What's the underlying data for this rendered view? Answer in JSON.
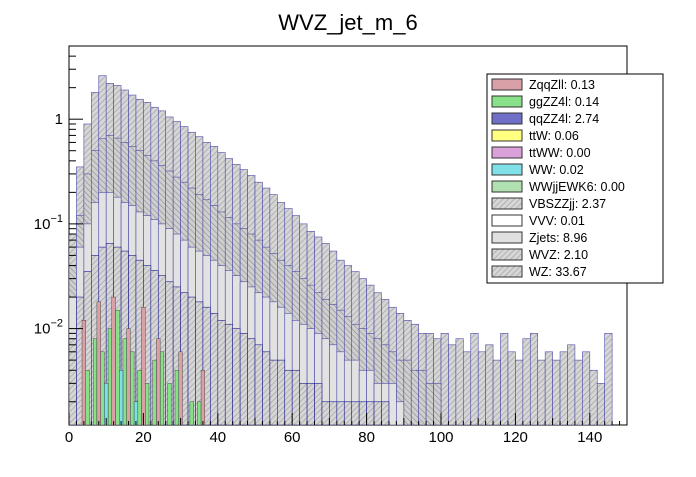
{
  "chart_data": {
    "type": "bar",
    "style": "stacked-step-histogram",
    "title": "WVZ_jet_m_6",
    "xlabel": "",
    "ylabel": "",
    "xlim": [
      0,
      150
    ],
    "ylim": [
      0.0012,
      5.0
    ],
    "yscale": "log",
    "x_ticks": [
      {
        "value": 0,
        "label": "0"
      },
      {
        "value": 20,
        "label": "20"
      },
      {
        "value": 40,
        "label": "40"
      },
      {
        "value": 60,
        "label": "60"
      },
      {
        "value": 80,
        "label": "80"
      },
      {
        "value": 100,
        "label": "100"
      },
      {
        "value": 120,
        "label": "120"
      },
      {
        "value": 140,
        "label": "140"
      }
    ],
    "y_ticks": [
      {
        "value": 0.01,
        "base": "10",
        "exp": "−2"
      },
      {
        "value": 0.1,
        "base": "10",
        "exp": "−1"
      },
      {
        "value": 1,
        "base": "1",
        "exp": ""
      }
    ],
    "legend": {
      "position": "top-right",
      "entries": [
        {
          "label": "ZqqZll: 0.13",
          "color": "#d9a0a8",
          "hatched": false
        },
        {
          "label": "ggZZ4l: 0.14",
          "color": "#88e088",
          "hatched": false
        },
        {
          "label": "qqZZ4l: 2.74",
          "color": "#6f6fc8",
          "hatched": false
        },
        {
          "label": "ttW: 0.06",
          "color": "#ffff80",
          "hatched": false
        },
        {
          "label": "ttWW: 0.00",
          "color": "#d9a0d9",
          "hatched": false
        },
        {
          "label": "WW: 0.02",
          "color": "#80e0e8",
          "hatched": false
        },
        {
          "label": "WWjjEWK6: 0.00",
          "color": "#b0e0b0",
          "hatched": false
        },
        {
          "label": "VBSZZjj: 2.37",
          "color": "#b8b8b8",
          "hatched": true
        },
        {
          "label": "VVV: 0.01",
          "color": "#ffffff",
          "hatched": false
        },
        {
          "label": "Zjets: 8.96",
          "color": "#e0e0e0",
          "hatched": false
        },
        {
          "label": "WVZ: 2.10",
          "color": "#c8c8c8",
          "hatched": true
        },
        {
          "label": "WZ: 33.67",
          "color": "#c0c0c0",
          "hatched": true
        }
      ]
    },
    "series_envelopes": [
      {
        "name": "Total (WZ stack top)",
        "x": [
          1,
          3,
          5,
          7,
          9,
          11,
          13,
          15,
          17,
          19,
          21,
          23,
          25,
          27,
          29,
          31,
          33,
          35,
          37,
          39,
          41,
          43,
          45,
          47,
          49,
          51,
          53,
          55,
          57,
          59,
          61,
          63,
          65,
          67,
          69,
          71,
          73,
          75,
          77,
          79,
          81,
          83,
          85,
          87,
          89,
          91,
          93,
          95,
          97,
          99,
          101,
          103,
          105,
          107,
          109,
          111,
          113,
          115,
          117,
          119,
          121,
          123,
          125,
          127,
          129,
          131,
          133,
          135,
          137,
          139,
          141,
          143,
          145
        ],
        "values": [
          0.08,
          0.35,
          0.9,
          1.8,
          2.6,
          2.2,
          2.1,
          1.9,
          1.7,
          1.55,
          1.45,
          1.3,
          1.2,
          1.05,
          0.95,
          0.85,
          0.75,
          0.68,
          0.6,
          0.55,
          0.48,
          0.42,
          0.37,
          0.33,
          0.29,
          0.25,
          0.22,
          0.19,
          0.16,
          0.14,
          0.12,
          0.1,
          0.085,
          0.075,
          0.065,
          0.055,
          0.045,
          0.04,
          0.035,
          0.03,
          0.026,
          0.022,
          0.019,
          0.016,
          0.014,
          0.012,
          0.011,
          0.009,
          0.009,
          0.008,
          0.009,
          0.007,
          0.008,
          0.006,
          0.009,
          0.006,
          0.007,
          0.005,
          0.009,
          0.006,
          0.005,
          0.008,
          0.009,
          0.005,
          0.006,
          0.005,
          0.006,
          0.007,
          0.005,
          0.006,
          0.004,
          0.003,
          0.009
        ]
      },
      {
        "name": "WVZ stack top",
        "x": [
          1,
          3,
          5,
          7,
          9,
          11,
          13,
          15,
          17,
          19,
          21,
          23,
          25,
          27,
          29,
          31,
          33,
          35,
          37,
          39,
          41,
          43,
          45,
          47,
          49,
          51,
          53,
          55,
          57,
          59,
          61,
          63,
          65,
          67,
          69,
          71,
          73,
          75,
          77,
          79,
          81,
          83,
          85,
          87,
          89,
          91,
          93,
          95,
          97,
          99
        ],
        "values": [
          0.04,
          0.12,
          0.3,
          0.5,
          0.65,
          0.7,
          0.66,
          0.6,
          0.55,
          0.5,
          0.45,
          0.4,
          0.36,
          0.32,
          0.28,
          0.25,
          0.22,
          0.19,
          0.17,
          0.15,
          0.13,
          0.115,
          0.1,
          0.09,
          0.08,
          0.07,
          0.06,
          0.052,
          0.045,
          0.04,
          0.035,
          0.03,
          0.026,
          0.022,
          0.019,
          0.017,
          0.015,
          0.013,
          0.011,
          0.01,
          0.009,
          0.008,
          0.007,
          0.006,
          0.005,
          0.005,
          0.004,
          0.004,
          0.003,
          0.003
        ]
      },
      {
        "name": "Zjets stack top",
        "x": [
          1,
          3,
          5,
          7,
          9,
          11,
          13,
          15,
          17,
          19,
          21,
          23,
          25,
          27,
          29,
          31,
          33,
          35,
          37,
          39,
          41,
          43,
          45,
          47,
          49,
          51,
          53,
          55,
          57,
          59,
          61,
          63,
          65,
          67,
          69,
          71,
          73,
          75,
          77,
          79,
          81,
          83,
          85,
          87,
          89
        ],
        "values": [
          0.02,
          0.06,
          0.1,
          0.16,
          0.2,
          0.2,
          0.18,
          0.16,
          0.15,
          0.13,
          0.12,
          0.11,
          0.1,
          0.09,
          0.08,
          0.07,
          0.06,
          0.055,
          0.05,
          0.045,
          0.04,
          0.036,
          0.032,
          0.028,
          0.025,
          0.022,
          0.02,
          0.018,
          0.016,
          0.014,
          0.012,
          0.011,
          0.01,
          0.009,
          0.008,
          0.007,
          0.006,
          0.005,
          0.005,
          0.004,
          0.004,
          0.003,
          0.003,
          0.003,
          0.002
        ]
      },
      {
        "name": "qqZZ4l stack top",
        "x": [
          1,
          3,
          5,
          7,
          9,
          11,
          13,
          15,
          17,
          19,
          21,
          23,
          25,
          27,
          29,
          31,
          33,
          35,
          37,
          39,
          41,
          43,
          45,
          47,
          49,
          51,
          53,
          55,
          57,
          59,
          61,
          63,
          65,
          67,
          69,
          71,
          73,
          75,
          77,
          79,
          81,
          83,
          85
        ],
        "values": [
          0.008,
          0.02,
          0.035,
          0.05,
          0.06,
          0.065,
          0.06,
          0.055,
          0.05,
          0.045,
          0.04,
          0.036,
          0.032,
          0.028,
          0.025,
          0.022,
          0.02,
          0.018,
          0.016,
          0.014,
          0.012,
          0.011,
          0.01,
          0.009,
          0.008,
          0.007,
          0.006,
          0.005,
          0.005,
          0.004,
          0.004,
          0.003,
          0.003,
          0.003,
          0.002,
          0.002,
          0.002,
          0.002,
          0.002,
          0.002,
          0.002,
          0.002,
          0.002
        ]
      }
    ],
    "small_bars": [
      {
        "name": "ggZZ4l",
        "x": [
          5,
          7,
          9,
          11,
          13,
          15,
          17,
          19,
          21,
          23,
          25,
          27,
          29,
          33,
          35
        ],
        "values": [
          0.004,
          0.008,
          0.006,
          0.01,
          0.015,
          0.008,
          0.006,
          0.004,
          0.003,
          0.005,
          0.006,
          0.003,
          0.004,
          0.002,
          0.002
        ]
      },
      {
        "name": "ZqqZll",
        "x": [
          4,
          8,
          12,
          16,
          20,
          24,
          30,
          36
        ],
        "values": [
          0.012,
          0.018,
          0.02,
          0.01,
          0.016,
          0.008,
          0.006,
          0.004
        ]
      },
      {
        "name": "WW",
        "x": [
          10,
          14,
          18
        ],
        "values": [
          0.003,
          0.004,
          0.002
        ]
      }
    ]
  }
}
